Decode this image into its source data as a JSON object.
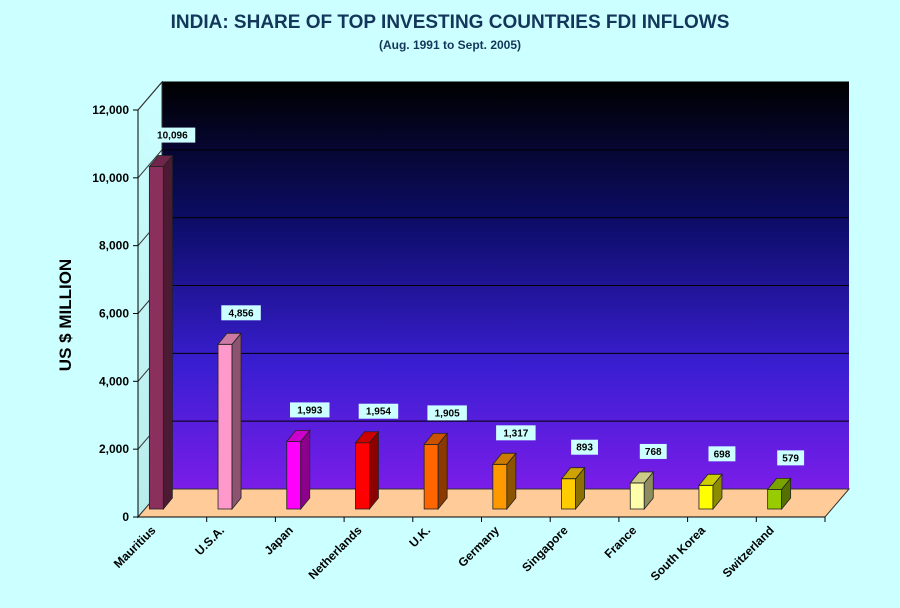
{
  "chart_data": {
    "type": "bar",
    "title": "INDIA:  SHARE OF TOP INVESTING COUNTRIES FDI INFLOWS",
    "subtitle": "(Aug. 1991 to Sept. 2005)",
    "ylabel": "US $ MILLION",
    "xlabel": "",
    "ylim": [
      0,
      12000
    ],
    "yticks": [
      "0",
      "2,000",
      "4,000",
      "6,000",
      "8,000",
      "10,000",
      "12,000"
    ],
    "categories": [
      "Mauritius",
      "U.S.A.",
      "Japan",
      "Netherlands",
      "U.K.",
      "Germany",
      "Singapore",
      "France",
      "South Korea",
      "Switzerland"
    ],
    "values": [
      10096,
      4856,
      1993,
      1954,
      1905,
      1317,
      893,
      768,
      698,
      579
    ],
    "value_labels": [
      "10,096",
      "4,856",
      "1,993",
      "1,954",
      "1,905",
      "1,317",
      "893",
      "768",
      "698",
      "579"
    ],
    "colors": [
      "#8b2f5c",
      "#ff99cc",
      "#ff00ff",
      "#ff0000",
      "#ff6600",
      "#ff9900",
      "#ffcc00",
      "#ffffaa",
      "#ffff00",
      "#99cc00"
    ],
    "grid": true,
    "legend": "none"
  }
}
